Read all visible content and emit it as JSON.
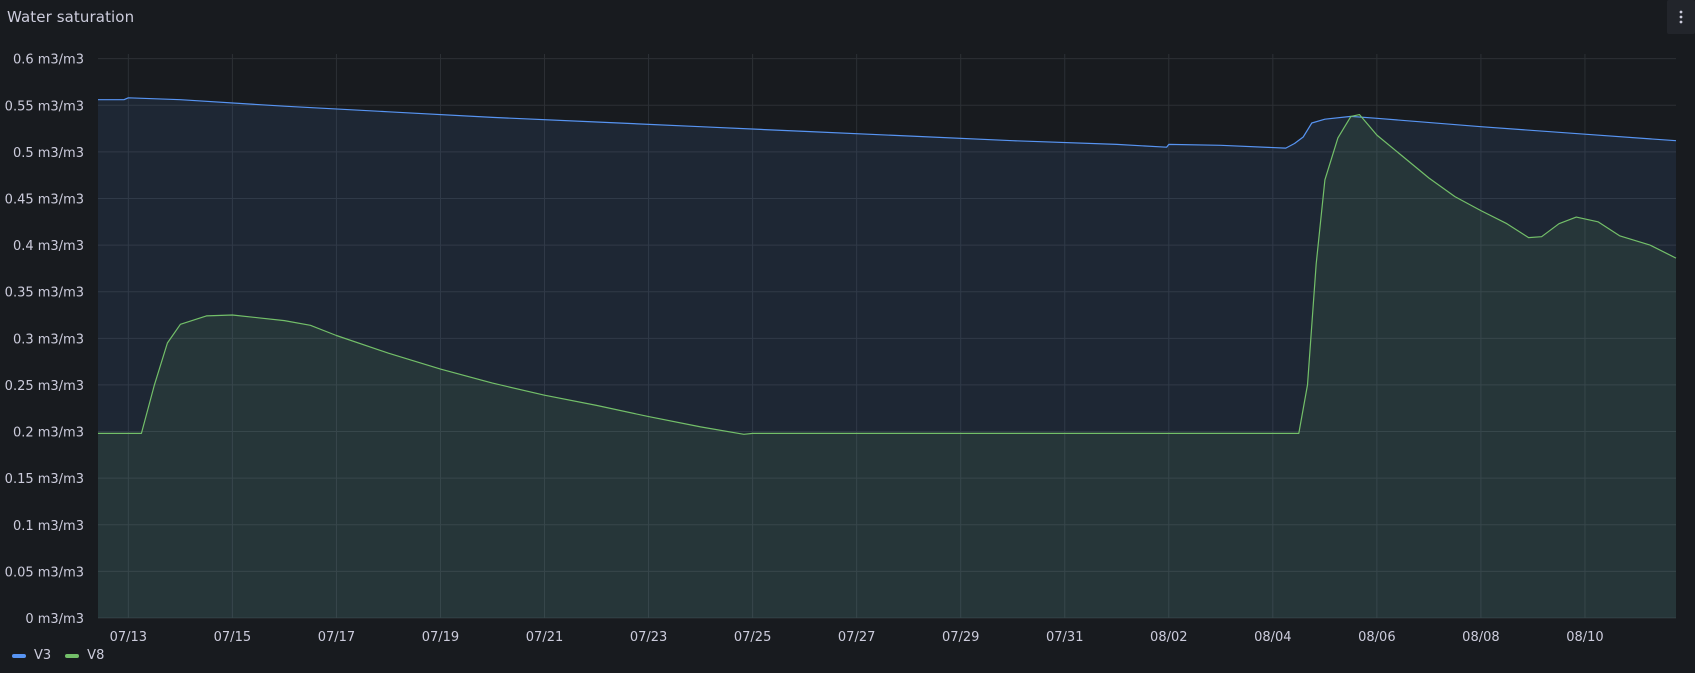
{
  "panel": {
    "title": "Water saturation",
    "menu_icon": "kebab-vertical-icon"
  },
  "colors": {
    "background": "#181b1f",
    "grid": "#2c3035",
    "text": "#ccccdc"
  },
  "chart_data": {
    "type": "area",
    "title": "Water saturation",
    "xlabel": "",
    "ylabel": "",
    "unit": "m3/m3",
    "ylim": [
      0,
      0.62
    ],
    "xlim": [
      "2025-07-12T10:00",
      "2025-08-11T18:00"
    ],
    "y_ticks": [
      0,
      0.05,
      0.1,
      0.15,
      0.2,
      0.25,
      0.3,
      0.35,
      0.4,
      0.45,
      0.5,
      0.55,
      0.6
    ],
    "y_tick_labels": [
      "0 m3/m3",
      "0.05 m3/m3",
      "0.1 m3/m3",
      "0.15 m3/m3",
      "0.2 m3/m3",
      "0.25 m3/m3",
      "0.3 m3/m3",
      "0.35 m3/m3",
      "0.4 m3/m3",
      "0.45 m3/m3",
      "0.5 m3/m3",
      "0.55 m3/m3",
      "0.6 m3/m3"
    ],
    "x_ticks": [
      "2025-07-13",
      "2025-07-15",
      "2025-07-17",
      "2025-07-19",
      "2025-07-21",
      "2025-07-23",
      "2025-07-25",
      "2025-07-27",
      "2025-07-29",
      "2025-07-31",
      "2025-08-02",
      "2025-08-04",
      "2025-08-06",
      "2025-08-08",
      "2025-08-10"
    ],
    "x_tick_labels": [
      "07/13",
      "07/15",
      "07/17",
      "07/19",
      "07/21",
      "07/23",
      "07/25",
      "07/27",
      "07/29",
      "07/31",
      "08/02",
      "08/04",
      "08/06",
      "08/08",
      "08/10"
    ],
    "grid": true,
    "legend": "bottom-left",
    "series": [
      {
        "name": "V3",
        "color": "#5794f2",
        "points": [
          [
            "2025-07-12T10:00",
            0.556
          ],
          [
            "2025-07-12T22:00",
            0.556
          ],
          [
            "2025-07-13T00:00",
            0.558
          ],
          [
            "2025-07-14T00:00",
            0.556
          ],
          [
            "2025-07-16T00:00",
            0.549
          ],
          [
            "2025-07-18T00:00",
            0.543
          ],
          [
            "2025-07-20T00:00",
            0.537
          ],
          [
            "2025-07-22T00:00",
            0.532
          ],
          [
            "2025-07-24T00:00",
            0.527
          ],
          [
            "2025-07-26T00:00",
            0.522
          ],
          [
            "2025-07-28T00:00",
            0.517
          ],
          [
            "2025-07-30T00:00",
            0.512
          ],
          [
            "2025-08-01T00:00",
            0.508
          ],
          [
            "2025-08-01T23:00",
            0.505
          ],
          [
            "2025-08-02T00:00",
            0.508
          ],
          [
            "2025-08-03T00:00",
            0.507
          ],
          [
            "2025-08-04T06:00",
            0.504
          ],
          [
            "2025-08-04T10:00",
            0.509
          ],
          [
            "2025-08-04T14:00",
            0.516
          ],
          [
            "2025-08-04T18:00",
            0.531
          ],
          [
            "2025-08-05T00:00",
            0.535
          ],
          [
            "2025-08-05T12:00",
            0.538
          ],
          [
            "2025-08-06T00:00",
            0.536
          ],
          [
            "2025-08-08T00:00",
            0.527
          ],
          [
            "2025-08-10T00:00",
            0.519
          ],
          [
            "2025-08-11T18:00",
            0.512
          ]
        ]
      },
      {
        "name": "V8",
        "color": "#73bf69",
        "points": [
          [
            "2025-07-12T10:00",
            0.198
          ],
          [
            "2025-07-13T06:00",
            0.198
          ],
          [
            "2025-07-13T12:00",
            0.25
          ],
          [
            "2025-07-13T18:00",
            0.295
          ],
          [
            "2025-07-14T00:00",
            0.315
          ],
          [
            "2025-07-14T12:00",
            0.324
          ],
          [
            "2025-07-15T00:00",
            0.325
          ],
          [
            "2025-07-15T12:00",
            0.322
          ],
          [
            "2025-07-16T00:00",
            0.319
          ],
          [
            "2025-07-16T12:00",
            0.314
          ],
          [
            "2025-07-17T00:00",
            0.303
          ],
          [
            "2025-07-18T00:00",
            0.284
          ],
          [
            "2025-07-19T00:00",
            0.267
          ],
          [
            "2025-07-20T00:00",
            0.252
          ],
          [
            "2025-07-21T00:00",
            0.239
          ],
          [
            "2025-07-22T00:00",
            0.228
          ],
          [
            "2025-07-23T00:00",
            0.216
          ],
          [
            "2025-07-24T00:00",
            0.205
          ],
          [
            "2025-07-24T20:00",
            0.197
          ],
          [
            "2025-07-25T00:00",
            0.198
          ],
          [
            "2025-08-04T12:00",
            0.198
          ],
          [
            "2025-08-04T16:00",
            0.25
          ],
          [
            "2025-08-04T20:00",
            0.38
          ],
          [
            "2025-08-05T00:00",
            0.47
          ],
          [
            "2025-08-05T06:00",
            0.515
          ],
          [
            "2025-08-05T12:00",
            0.538
          ],
          [
            "2025-08-05T16:00",
            0.54
          ],
          [
            "2025-08-06T00:00",
            0.518
          ],
          [
            "2025-08-07T00:00",
            0.472
          ],
          [
            "2025-08-07T12:00",
            0.452
          ],
          [
            "2025-08-08T00:00",
            0.437
          ],
          [
            "2025-08-08T12:00",
            0.423
          ],
          [
            "2025-08-08T22:00",
            0.408
          ],
          [
            "2025-08-09T04:00",
            0.409
          ],
          [
            "2025-08-09T12:00",
            0.423
          ],
          [
            "2025-08-09T20:00",
            0.43
          ],
          [
            "2025-08-10T06:00",
            0.425
          ],
          [
            "2025-08-10T16:00",
            0.41
          ],
          [
            "2025-08-11T06:00",
            0.4
          ],
          [
            "2025-08-11T18:00",
            0.386
          ]
        ]
      }
    ]
  }
}
